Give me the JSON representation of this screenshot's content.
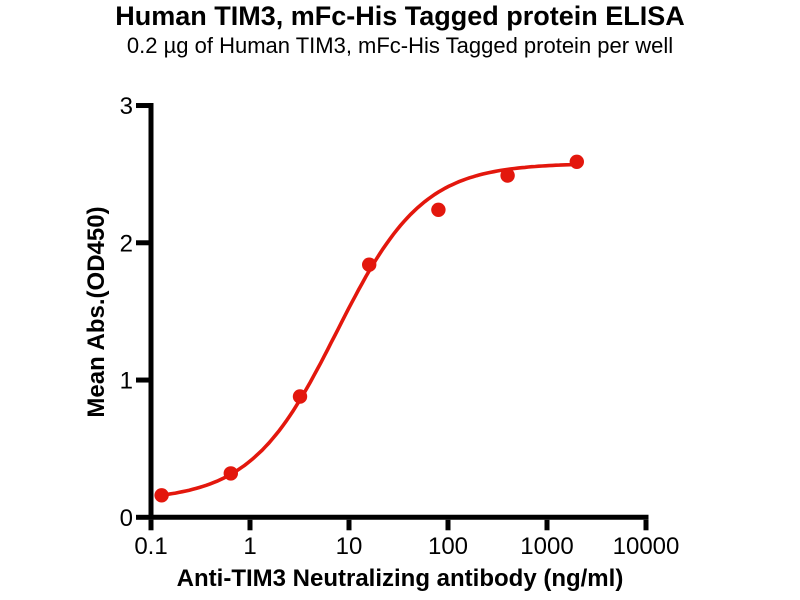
{
  "chart_data": {
    "type": "scatter",
    "title": "Human TIM3, mFc-His Tagged protein ELISA",
    "subtitle": "0.2 µg of Human TIM3, mFc-His Tagged protein per well",
    "xlabel": "Anti-TIM3 Neutralizing antibody (ng/ml)",
    "ylabel": "Mean Abs.(OD450)",
    "xscale": "log",
    "xlim": [
      0.1,
      10000
    ],
    "ylim": [
      0,
      3
    ],
    "x_tick_values": [
      0.1,
      1,
      10,
      100,
      1000,
      10000
    ],
    "x_tick_labels": [
      "0.1",
      "1",
      "10",
      "100",
      "1000",
      "10000"
    ],
    "y_tick_values": [
      0,
      1,
      2,
      3
    ],
    "y_tick_labels": [
      "0",
      "1",
      "2",
      "3"
    ],
    "grid": false,
    "legend": "none",
    "axis_color": "#000000",
    "series": [
      {
        "name": "Human TIM3, mFc-His Tagged protein",
        "x": [
          0.128,
          0.64,
          3.2,
          16,
          80,
          400,
          2000
        ],
        "y": [
          0.16,
          0.32,
          0.88,
          1.84,
          2.24,
          2.49,
          2.59
        ],
        "marker": "circle",
        "color": "#e3170d"
      }
    ],
    "fit_curve": {
      "model": "4PL",
      "bottom": 0.12,
      "top": 2.58,
      "ec50": 7.5,
      "hill": 1.0,
      "x_range": [
        0.128,
        2000
      ],
      "color": "#e3170d"
    }
  }
}
